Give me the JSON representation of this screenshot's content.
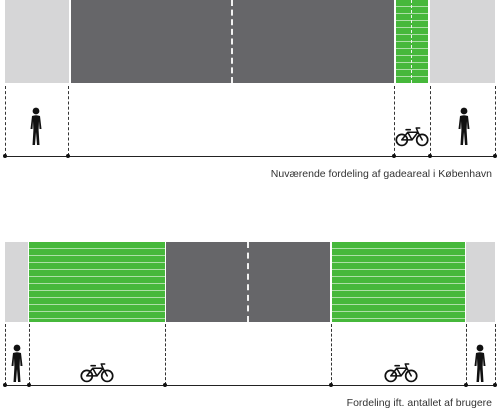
{
  "diagram_top": {
    "caption": "Nuværende fordeling af gadeareal i København",
    "segments": [
      "sidewalk",
      "road",
      "bike-lane",
      "sidewalk"
    ]
  },
  "diagram_bottom": {
    "caption": "Fordeling ift. antallet af brugere",
    "segments": [
      "sidewalk",
      "bike-lane",
      "road",
      "bike-lane",
      "sidewalk"
    ]
  },
  "icons": [
    "pedestrian-icon",
    "bicycle-icon"
  ],
  "colors": {
    "sidewalk": "#d6d6d7",
    "road": "#666669",
    "bike_lane": "#46b83b",
    "lane_marking": "#f2f2f2",
    "dimension_line": "#222222"
  }
}
